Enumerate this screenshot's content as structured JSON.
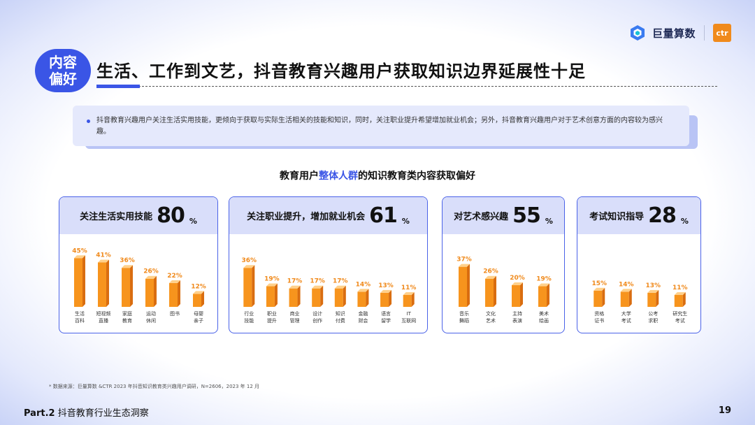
{
  "header": {
    "badge_line1": "内容",
    "badge_line2": "偏好",
    "title": "生活、工作到文艺，抖音教育兴趣用户获取知识边界延展性十足",
    "logo_text": "巨量算数",
    "ctr_text": "ctr"
  },
  "note": {
    "text": "抖音教育兴趣用户关注生活实用技能，更倾向于获取与实际生活相关的技能和知识，同时，关注职业提升希望增加就业机会；另外，抖音教育兴趣用户对于艺术创意方面的内容较为感兴趣。"
  },
  "chart_title": {
    "before": "教育用户",
    "highlight": "整体人群",
    "after": "的知识教育类内容获取偏好"
  },
  "colors": {
    "accent": "#3a55e6",
    "bar_front": "#f7941d",
    "bar_side": "#d96d10",
    "bar_top": "#ffd08a",
    "value_label": "#f08a1c"
  },
  "chart_data": [
    {
      "type": "bar",
      "title": "关注生活实用技能",
      "total": "80",
      "unit": "%",
      "categories": [
        [
          "生活",
          "百科"
        ],
        [
          "短视频",
          "直播"
        ],
        [
          "家庭",
          "教育"
        ],
        [
          "运动",
          "休闲"
        ],
        [
          "图书"
        ],
        [
          "母婴",
          "亲子"
        ]
      ],
      "values": [
        45,
        41,
        36,
        26,
        22,
        12
      ],
      "value_labels": [
        "45%",
        "41%",
        "36%",
        "26%",
        "22%",
        "12%"
      ]
    },
    {
      "type": "bar",
      "title": "关注职业提升，增加就业机会",
      "total": "61",
      "unit": "%",
      "categories": [
        [
          "行业",
          "技能"
        ],
        [
          "职业",
          "提升"
        ],
        [
          "商业",
          "管理"
        ],
        [
          "设计",
          "创作"
        ],
        [
          "知识",
          "付费"
        ],
        [
          "金融",
          "财会"
        ],
        [
          "语言",
          "留学"
        ],
        [
          "IT",
          "互联网"
        ]
      ],
      "values": [
        36,
        19,
        17,
        17,
        17,
        14,
        13,
        11
      ],
      "value_labels": [
        "36%",
        "19%",
        "17%",
        "17%",
        "17%",
        "14%",
        "13%",
        "11%"
      ]
    },
    {
      "type": "bar",
      "title": "对艺术感兴趣",
      "total": "55",
      "unit": "%",
      "categories": [
        [
          "音乐",
          "舞蹈"
        ],
        [
          "文化",
          "艺术"
        ],
        [
          "主持",
          "表演"
        ],
        [
          "美术",
          "绘画"
        ]
      ],
      "values": [
        37,
        26,
        20,
        19
      ],
      "value_labels": [
        "37%",
        "26%",
        "20%",
        "19%"
      ]
    },
    {
      "type": "bar",
      "title": "考试知识指导",
      "total": "28",
      "unit": "%",
      "categories": [
        [
          "资格",
          "证书"
        ],
        [
          "大学",
          "考试"
        ],
        [
          "公考",
          "求职"
        ],
        [
          "研究生",
          "考试"
        ]
      ],
      "values": [
        15,
        14,
        13,
        11
      ],
      "value_labels": [
        "15%",
        "14%",
        "13%",
        "11%"
      ]
    }
  ],
  "footnote": "* 数据来源：巨量算数 &CTR 2023 年抖音知识教育类兴趣用户调研，N=2606，2023 年 12 月",
  "footer": {
    "part": "Part.2",
    "section": "抖音教育行业生态洞察",
    "page": "19"
  }
}
